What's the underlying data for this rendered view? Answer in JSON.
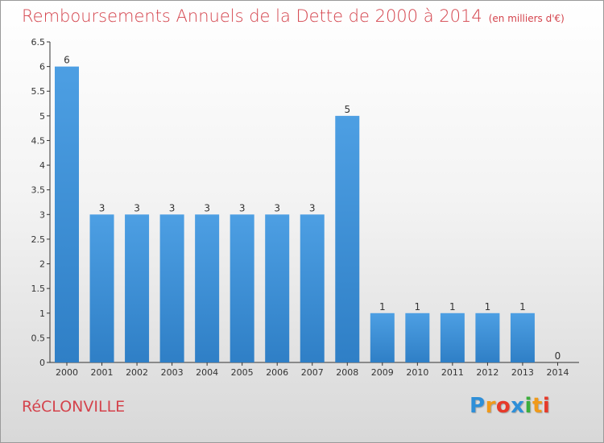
{
  "chart_data": {
    "type": "bar",
    "title": "Remboursements Annuels de la Dette de 2000 à 2014",
    "unit_note": "(en milliers d'€)",
    "categories": [
      "2000",
      "2001",
      "2002",
      "2003",
      "2004",
      "2005",
      "2006",
      "2007",
      "2008",
      "2009",
      "2010",
      "2011",
      "2012",
      "2013",
      "2014"
    ],
    "values": [
      6,
      3,
      3,
      3,
      3,
      3,
      3,
      3,
      5,
      1,
      1,
      1,
      1,
      1,
      0
    ],
    "data_labels": [
      "6",
      "3",
      "3",
      "3",
      "3",
      "3",
      "3",
      "3",
      "5",
      "1",
      "1",
      "1",
      "1",
      "1",
      "0"
    ],
    "y_ticks": [
      0,
      0.5,
      1,
      1.5,
      2,
      2.5,
      3,
      3.5,
      4,
      4.5,
      5,
      5.5,
      6,
      6.5
    ],
    "y_tick_labels": [
      "0",
      "0.5",
      "1",
      "1.5",
      "2",
      "2.5",
      "3",
      "3.5",
      "4",
      "4.5",
      "5",
      "5.5",
      "6",
      "6.5"
    ],
    "ylim": [
      0,
      6.5
    ],
    "xlabel": "",
    "ylabel": "",
    "grid": false,
    "bar_color": "#4d9fe3",
    "bar_color_dark": "#2f7fc6"
  },
  "footer": {
    "city": "RéCLONVILLE",
    "logo_letters": [
      "P",
      "r",
      "o",
      "x",
      "i",
      "t",
      "i"
    ],
    "logo_colors": [
      "#2e8fd8",
      "#f09a1a",
      "#e63a2a",
      "#2e8fd8",
      "#3cae3c",
      "#f09a1a",
      "#e63a2a"
    ]
  }
}
